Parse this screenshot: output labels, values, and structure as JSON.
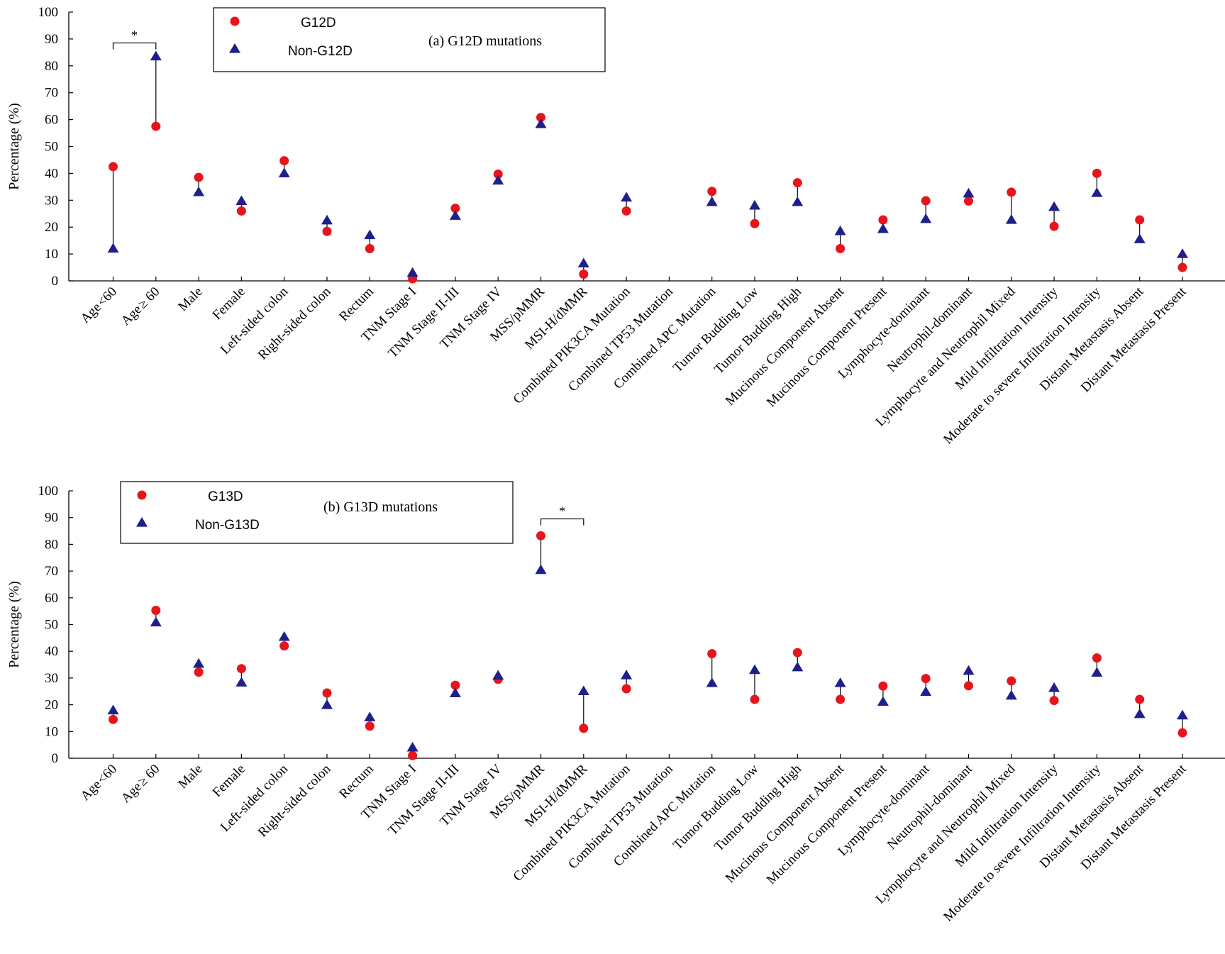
{
  "colors": {
    "g_point": "#e8141c",
    "non_point": "#1f1f8c"
  },
  "chart_data": [
    {
      "type": "scatter",
      "title": "(a) G12D  mutations",
      "ylabel": "Percentage (%)",
      "xlabel": "",
      "ylim": [
        0,
        100
      ],
      "yticks": [
        "0",
        "10",
        "20",
        "30",
        "40",
        "50",
        "60",
        "70",
        "80",
        "90",
        "100"
      ],
      "legend": {
        "position": "top-left",
        "entries": [
          "G12D",
          "Non-G12D"
        ]
      },
      "categories": [
        "Age <60",
        "Age ≥ 60",
        "Male",
        "Female",
        "Left-sided colon",
        "Right-sided colon",
        "Rectum",
        "TNM Stage I",
        "TNM Stage II-III",
        "TNM Stage IV",
        "MSS/pMMR",
        "MSI-H/dMMR",
        "Combined PIK3CA Mutation",
        "Combined TP53 Mutation",
        "Combined APC Mutation",
        "Tumor Budding Low",
        "Tumor Budding   High",
        "Mucinous Component Absent",
        "Mucinous Component Present",
        "Lymphocyte-dominant",
        "Neutrophil-dominant",
        "Lymphocyte and Neutrophil Mixed",
        "Mild Infiltration Intensity",
        "Moderate to severe Infiltration Intensity",
        "Distant Metastasis Absent",
        "Distant Metastasis Present"
      ],
      "series": [
        {
          "name": "G12D",
          "marker": "circle",
          "values": [
            42.5,
            57.5,
            38.5,
            26,
            44.7,
            18.4,
            12,
            0.8,
            27,
            39.7,
            60.8,
            2.5,
            26,
            null,
            33.3,
            21.3,
            36.5,
            12,
            22.7,
            29.8,
            29.7,
            33,
            20.3,
            40,
            22.7,
            5
          ]
        },
        {
          "name": "Non-G12D",
          "marker": "triangle",
          "values": [
            12,
            83.5,
            33,
            29.7,
            40,
            22.5,
            17,
            3,
            24.2,
            37.3,
            58.3,
            6.5,
            31,
            null,
            29.3,
            28,
            29.3,
            18.5,
            19.3,
            23,
            32.5,
            22.7,
            27.5,
            32.7,
            15.5,
            10
          ]
        }
      ],
      "annotations": [
        {
          "text": "*",
          "between": [
            "Age <60",
            "Age ≥ 60"
          ],
          "y": 88.5
        }
      ]
    },
    {
      "type": "scatter",
      "title": "(b) G13D  mutations",
      "ylabel": "Percentage (%)",
      "xlabel": "",
      "ylim": [
        0,
        100
      ],
      "yticks": [
        "0",
        "10",
        "20",
        "30",
        "40",
        "50",
        "60",
        "70",
        "80",
        "90",
        "100"
      ],
      "legend": {
        "position": "top-left",
        "entries": [
          "G13D",
          "Non-G13D"
        ]
      },
      "categories": [
        "Age <60",
        "Age ≥ 60",
        "Male",
        "Female",
        "Left-sided colon",
        "Right-sided colon",
        "Rectum",
        "TNM Stage I",
        "TNM Stage II-III",
        "TNM Stage IV",
        "MSS/pMMR",
        "MSI-H/dMMR",
        "Combined PIK3CA Mutation",
        "Combined TP53 Mutation",
        "Combined APC Mutation",
        "Tumor Budding Low",
        "Tumor Budding   High",
        "Mucinous Component Absent",
        "Mucinous Component Present",
        "Lymphocyte-dominant",
        "Neutrophil-dominant",
        "Lymphocyte and Neutrophil Mixed",
        "Mild Infiltration Intensity",
        "Moderate to severe Infiltration Intensity",
        "Distant Metastasis Absent",
        "Distant Metastasis Present"
      ],
      "series": [
        {
          "name": "G13D",
          "marker": "circle",
          "values": [
            14.5,
            55.3,
            32.2,
            33.5,
            42,
            24.4,
            12,
            1,
            27.3,
            29.5,
            83.2,
            11.2,
            26,
            null,
            39.1,
            22,
            39.5,
            22,
            27,
            29.8,
            27.1,
            28.9,
            21.6,
            37.5,
            22,
            9.5
          ]
        },
        {
          "name": "Non-G13D",
          "marker": "triangle",
          "values": [
            17.9,
            50.8,
            35.3,
            28.3,
            45.4,
            19.9,
            15.3,
            4,
            24.3,
            30.9,
            70.4,
            25.1,
            31,
            null,
            28.1,
            33,
            34,
            28.1,
            21.1,
            24.8,
            32.7,
            23.4,
            26.3,
            32,
            16.5,
            16
          ]
        }
      ],
      "annotations": [
        {
          "text": "*",
          "between": [
            "MSS/pMMR",
            "MSI-H/dMMR"
          ],
          "y": 89.5
        }
      ]
    }
  ]
}
